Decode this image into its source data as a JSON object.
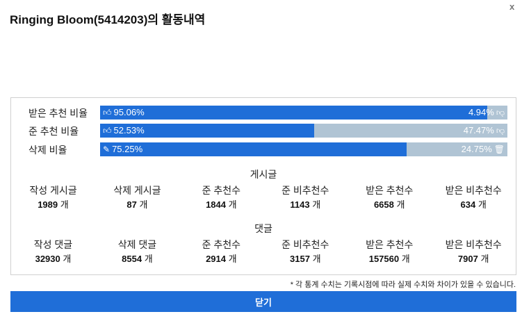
{
  "header": {
    "title": "Ringing Bloom(5414203)의 활동내역",
    "close_glyph": "x"
  },
  "ratios": [
    {
      "label": "받은 추천 비율",
      "left_text": "95.06%",
      "right_text": "4.94%",
      "fill_percent": 95.06,
      "left_icon": "thumbs-up-icon",
      "right_icon": "thumbs-down-icon"
    },
    {
      "label": "준 추천 비율",
      "left_text": "52.53%",
      "right_text": "47.47%",
      "fill_percent": 52.53,
      "left_icon": "thumbs-up-icon",
      "right_icon": "thumbs-down-icon"
    },
    {
      "label": "삭제 비율",
      "left_text": "75.25%",
      "right_text": "24.75%",
      "fill_percent": 75.25,
      "left_icon": "edit-icon",
      "right_icon": "trash-icon"
    }
  ],
  "posts": {
    "title": "게시글",
    "stats": [
      {
        "label": "작성 게시글",
        "value": "1989",
        "unit": "개"
      },
      {
        "label": "삭제 게시글",
        "value": "87",
        "unit": "개"
      },
      {
        "label": "준 추천수",
        "value": "1844",
        "unit": "개"
      },
      {
        "label": "준 비추천수",
        "value": "1143",
        "unit": "개"
      },
      {
        "label": "받은 추천수",
        "value": "6658",
        "unit": "개"
      },
      {
        "label": "받은 비추천수",
        "value": "634",
        "unit": "개"
      }
    ]
  },
  "comments": {
    "title": "댓글",
    "stats": [
      {
        "label": "작성 댓글",
        "value": "32930",
        "unit": "개"
      },
      {
        "label": "삭제 댓글",
        "value": "8554",
        "unit": "개"
      },
      {
        "label": "준 추천수",
        "value": "2914",
        "unit": "개"
      },
      {
        "label": "준 비추천수",
        "value": "3157",
        "unit": "개"
      },
      {
        "label": "받은 추천수",
        "value": "157560",
        "unit": "개"
      },
      {
        "label": "받은 비추천수",
        "value": "7907",
        "unit": "개"
      }
    ]
  },
  "notice": "* 각 통계 수치는 기록시점에 따라 실제 수치와 차이가 있을 수 있습니다.",
  "footer": {
    "close_label": "닫기"
  },
  "colors": {
    "accent": "#1f6ed8",
    "bar_track": "#b0c4d4"
  }
}
